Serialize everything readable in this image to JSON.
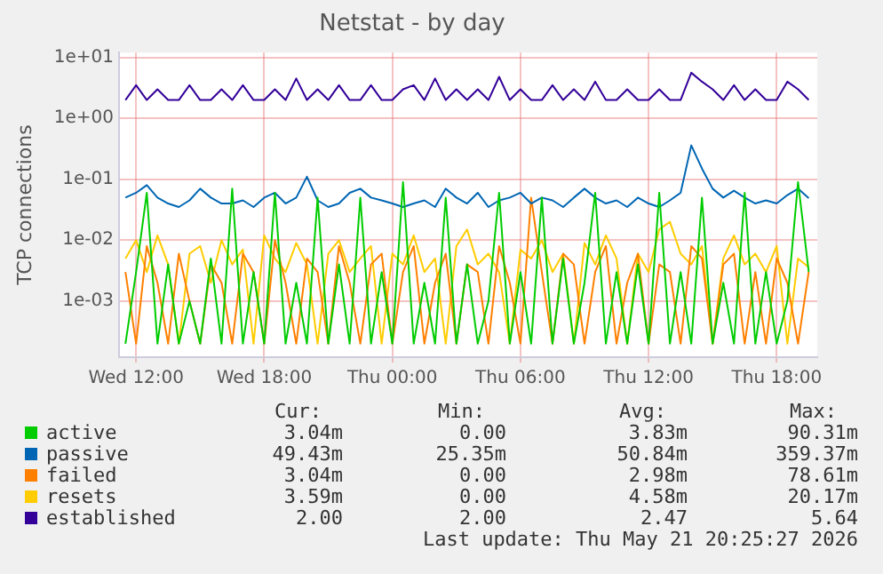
{
  "chart_data": {
    "type": "line",
    "title": "Netstat - by day",
    "ylabel": "TCP connections",
    "log": true,
    "grid": true,
    "legend": "bottom",
    "marker": "none",
    "line_style": "solid",
    "xlim": [
      "2026-05-20T11:12",
      "2026-05-21T19:54"
    ],
    "xticks": [
      {
        "value": "2026-05-20T12:00",
        "label": "Wed 12:00"
      },
      {
        "value": "2026-05-20T18:00",
        "label": "Wed 18:00"
      },
      {
        "value": "2026-05-21T00:00",
        "label": "Thu 00:00"
      },
      {
        "value": "2026-05-21T06:00",
        "label": "Thu 06:00"
      },
      {
        "value": "2026-05-21T12:00",
        "label": "Thu 12:00"
      },
      {
        "value": "2026-05-21T18:00",
        "label": "Thu 18:00"
      }
    ],
    "ylim": [
      0.00012,
      12
    ],
    "yticks": [
      {
        "value": 10,
        "label": "1e+01"
      },
      {
        "value": 1,
        "label": "1e+00"
      },
      {
        "value": 0.1,
        "label": "1e-01"
      },
      {
        "value": 0.01,
        "label": "1e-02"
      },
      {
        "value": 0.001,
        "label": "1e-03"
      }
    ],
    "x": [
      "2026-05-20T11:30",
      "2026-05-20T12:00",
      "2026-05-20T12:30",
      "2026-05-20T13:00",
      "2026-05-20T13:30",
      "2026-05-20T14:00",
      "2026-05-20T14:30",
      "2026-05-20T15:00",
      "2026-05-20T15:30",
      "2026-05-20T16:00",
      "2026-05-20T16:30",
      "2026-05-20T17:00",
      "2026-05-20T17:30",
      "2026-05-20T18:00",
      "2026-05-20T18:30",
      "2026-05-20T19:00",
      "2026-05-20T19:30",
      "2026-05-20T20:00",
      "2026-05-20T20:30",
      "2026-05-20T21:00",
      "2026-05-20T21:30",
      "2026-05-20T22:00",
      "2026-05-20T22:30",
      "2026-05-20T23:00",
      "2026-05-20T23:30",
      "2026-05-21T00:00",
      "2026-05-21T00:30",
      "2026-05-21T01:00",
      "2026-05-21T01:30",
      "2026-05-21T02:00",
      "2026-05-21T02:30",
      "2026-05-21T03:00",
      "2026-05-21T03:30",
      "2026-05-21T04:00",
      "2026-05-21T04:30",
      "2026-05-21T05:00",
      "2026-05-21T05:30",
      "2026-05-21T06:00",
      "2026-05-21T06:30",
      "2026-05-21T07:00",
      "2026-05-21T07:30",
      "2026-05-21T08:00",
      "2026-05-21T08:30",
      "2026-05-21T09:00",
      "2026-05-21T09:30",
      "2026-05-21T10:00",
      "2026-05-21T10:30",
      "2026-05-21T11:00",
      "2026-05-21T11:30",
      "2026-05-21T12:00",
      "2026-05-21T12:30",
      "2026-05-21T13:00",
      "2026-05-21T13:30",
      "2026-05-21T14:00",
      "2026-05-21T14:30",
      "2026-05-21T15:00",
      "2026-05-21T15:30",
      "2026-05-21T16:00",
      "2026-05-21T16:30",
      "2026-05-21T17:00",
      "2026-05-21T17:30",
      "2026-05-21T18:00",
      "2026-05-21T18:30",
      "2026-05-21T19:00",
      "2026-05-21T19:30"
    ],
    "series": [
      {
        "name": "active",
        "color": "#00cc00",
        "values": [
          0.0002,
          0.003,
          0.06,
          0.0002,
          0.004,
          0.0002,
          0.001,
          0.0002,
          0.005,
          0.0002,
          0.07,
          0.0002,
          0.003,
          0.0002,
          0.06,
          0.0002,
          0.002,
          0.0002,
          0.05,
          0.0002,
          0.004,
          0.0002,
          0.05,
          0.0002,
          0.003,
          0.0002,
          0.09,
          0.0002,
          0.002,
          0.0002,
          0.05,
          0.0002,
          0.004,
          0.0002,
          0.001,
          0.06,
          0.0002,
          0.003,
          0.0002,
          0.05,
          0.0002,
          0.005,
          0.0002,
          0.002,
          0.06,
          0.0002,
          0.003,
          0.0002,
          0.004,
          0.0002,
          0.06,
          0.0002,
          0.003,
          0.0002,
          0.05,
          0.0002,
          0.002,
          0.0002,
          0.06,
          0.0002,
          0.003,
          0.0002,
          0.001,
          0.09,
          0.00304
        ]
      },
      {
        "name": "passive",
        "color": "#0066b3",
        "values": [
          0.05,
          0.06,
          0.08,
          0.05,
          0.04,
          0.035,
          0.045,
          0.07,
          0.05,
          0.04,
          0.04,
          0.045,
          0.035,
          0.05,
          0.06,
          0.04,
          0.05,
          0.11,
          0.045,
          0.035,
          0.04,
          0.06,
          0.07,
          0.05,
          0.045,
          0.04,
          0.035,
          0.04,
          0.045,
          0.035,
          0.07,
          0.05,
          0.04,
          0.06,
          0.035,
          0.045,
          0.05,
          0.06,
          0.04,
          0.05,
          0.045,
          0.035,
          0.05,
          0.07,
          0.05,
          0.04,
          0.045,
          0.035,
          0.05,
          0.04,
          0.035,
          0.045,
          0.06,
          0.36,
          0.15,
          0.07,
          0.05,
          0.065,
          0.05,
          0.04,
          0.045,
          0.04,
          0.055,
          0.07,
          0.049
        ]
      },
      {
        "name": "failed",
        "color": "#ff8000",
        "values": [
          0.003,
          0.0002,
          0.008,
          0.002,
          0.0002,
          0.006,
          0.001,
          0.0002,
          0.004,
          0.002,
          0.0002,
          0.006,
          0.003,
          0.0002,
          0.01,
          0.002,
          0.0002,
          0.005,
          0.003,
          0.0002,
          0.008,
          0.002,
          0.0002,
          0.004,
          0.006,
          0.0002,
          0.003,
          0.008,
          0.0002,
          0.002,
          0.006,
          0.0002,
          0.004,
          0.003,
          0.0002,
          0.008,
          0.002,
          0.0002,
          0.05,
          0.003,
          0.0002,
          0.006,
          0.004,
          0.0002,
          0.003,
          0.008,
          0.0002,
          0.002,
          0.006,
          0.0002,
          0.004,
          0.003,
          0.0002,
          0.008,
          0.005,
          0.0002,
          0.004,
          0.006,
          0.0002,
          0.003,
          0.0002,
          0.005,
          0.002,
          0.0002,
          0.00304
        ]
      },
      {
        "name": "resets",
        "color": "#ffcc00",
        "values": [
          0.005,
          0.01,
          0.003,
          0.012,
          0.004,
          0.0002,
          0.006,
          0.008,
          0.002,
          0.01,
          0.004,
          0.007,
          0.0002,
          0.012,
          0.005,
          0.003,
          0.009,
          0.004,
          0.0002,
          0.006,
          0.01,
          0.003,
          0.005,
          0.008,
          0.0002,
          0.006,
          0.004,
          0.012,
          0.003,
          0.005,
          0.0002,
          0.008,
          0.015,
          0.004,
          0.006,
          0.003,
          0.0002,
          0.007,
          0.005,
          0.01,
          0.003,
          0.006,
          0.0002,
          0.009,
          0.004,
          0.012,
          0.005,
          0.0002,
          0.006,
          0.003,
          0.015,
          0.02,
          0.006,
          0.004,
          0.008,
          0.0002,
          0.005,
          0.012,
          0.004,
          0.006,
          0.003,
          0.008,
          0.0002,
          0.005,
          0.00359
        ]
      },
      {
        "name": "established",
        "color": "#330099",
        "values": [
          2,
          3.5,
          2,
          3,
          2,
          2,
          3.5,
          2,
          2,
          3,
          2,
          3.5,
          2,
          2,
          3,
          2,
          4.5,
          2,
          3,
          2,
          3.5,
          2,
          2,
          3.5,
          2,
          2,
          3,
          3.5,
          2,
          4.5,
          2,
          3,
          2,
          3,
          2,
          4.8,
          2,
          3,
          2,
          2,
          3.5,
          2,
          3,
          2,
          4,
          2,
          2,
          3,
          2,
          2,
          3,
          2,
          2,
          5.6,
          4,
          3,
          2,
          3.5,
          2,
          3,
          2,
          2,
          4,
          3,
          2
        ]
      }
    ],
    "annotations": [
      "Cur:",
      "Min:",
      "Avg:",
      "Max:",
      "3.04m",
      "0.00",
      "3.83m",
      "90.31m",
      "49.43m",
      "25.35m",
      "50.84m",
      "359.37m",
      "3.04m",
      "0.00",
      "2.98m",
      "78.61m",
      "3.59m",
      "0.00",
      "4.58m",
      "20.17m",
      "2.00",
      "2.00",
      "2.47",
      "5.64",
      "Last update: Thu May 21 20:25:27 2026"
    ]
  }
}
